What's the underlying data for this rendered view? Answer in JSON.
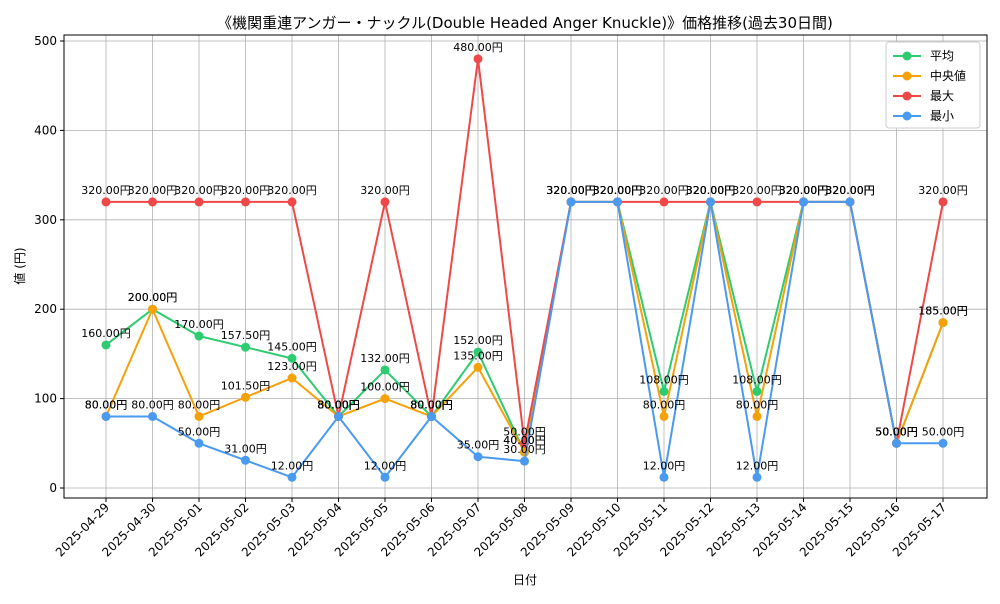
{
  "chart_data": {
    "type": "line",
    "title": "《機関重連アンガー・ナックル(Double Headed Anger Knuckle)》価格推移(過去30日間)",
    "xlabel": "日付",
    "ylabel": "値 (円)",
    "ylim": [
      0,
      500
    ],
    "yticks": [
      "0",
      "100",
      "200",
      "300",
      "400",
      "500"
    ],
    "grid": true,
    "legend_position": "top-right",
    "value_suffix": "円",
    "categories": [
      "2025-04-29",
      "2025-04-30",
      "2025-05-01",
      "2025-05-02",
      "2025-05-03",
      "2025-05-04",
      "2025-05-05",
      "2025-05-06",
      "2025-05-07",
      "2025-05-08",
      "2025-05-09",
      "2025-05-10",
      "2025-05-11",
      "2025-05-12",
      "2025-05-13",
      "2025-05-14",
      "2025-05-15",
      "2025-05-16",
      "2025-05-17"
    ],
    "series": [
      {
        "name": "平均",
        "color": "#2ecc71",
        "values": [
          160,
          200,
          170,
          157.5,
          145,
          80,
          132,
          80,
          152,
          40,
          320,
          320,
          108,
          320,
          108,
          320,
          320,
          50,
          185
        ]
      },
      {
        "name": "中央値",
        "color": "#f5a10a",
        "values": [
          80,
          200,
          80,
          101.5,
          123,
          80,
          100,
          80,
          135,
          40,
          320,
          320,
          80,
          320,
          80,
          320,
          320,
          50,
          185
        ]
      },
      {
        "name": "最大",
        "color": "#f04848",
        "values": [
          320,
          320,
          320,
          320,
          320,
          80,
          320,
          80,
          480,
          50,
          320,
          320,
          320,
          320,
          320,
          320,
          320,
          50,
          320
        ]
      },
      {
        "name": "最小",
        "color": "#4a9af0",
        "values": [
          80,
          80,
          50,
          31,
          12,
          80,
          12,
          80,
          35,
          30,
          320,
          320,
          12,
          320,
          12,
          320,
          320,
          50,
          50
        ]
      }
    ]
  }
}
